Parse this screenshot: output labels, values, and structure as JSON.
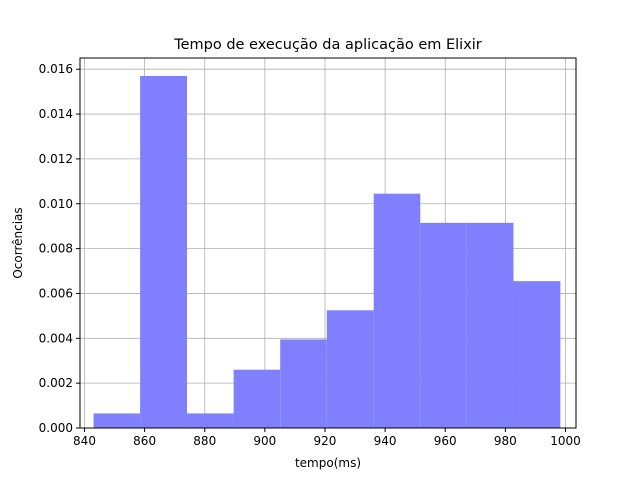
{
  "chart_data": {
    "type": "bar",
    "subtype": "histogram",
    "title": "Tempo de execução da aplicação em Elixir",
    "xlabel": "tempo(ms)",
    "ylabel": "Ocorrências",
    "xlim": [
      838.5,
      1003.5
    ],
    "ylim": [
      0,
      0.0165
    ],
    "grid": true,
    "bar_color": "#8080ff",
    "x_ticks": [
      "840",
      "860",
      "880",
      "900",
      "920",
      "940",
      "960",
      "980",
      "1000"
    ],
    "x_tick_values": [
      840,
      860,
      880,
      900,
      920,
      940,
      960,
      980,
      1000
    ],
    "y_ticks": [
      "0.000",
      "0.002",
      "0.004",
      "0.006",
      "0.008",
      "0.010",
      "0.012",
      "0.014",
      "0.016"
    ],
    "y_tick_values": [
      0,
      0.002,
      0.004,
      0.006,
      0.008,
      0.01,
      0.012,
      0.014,
      0.016
    ],
    "bins": [
      {
        "start": 843.0,
        "end": 858.5,
        "value": 0.00065
      },
      {
        "start": 858.5,
        "end": 874.1,
        "value": 0.0157
      },
      {
        "start": 874.1,
        "end": 889.6,
        "value": 0.00065
      },
      {
        "start": 889.6,
        "end": 905.1,
        "value": 0.0026
      },
      {
        "start": 905.1,
        "end": 920.6,
        "value": 0.00395
      },
      {
        "start": 920.6,
        "end": 936.2,
        "value": 0.00525
      },
      {
        "start": 936.2,
        "end": 951.7,
        "value": 0.01045
      },
      {
        "start": 951.7,
        "end": 967.2,
        "value": 0.00915
      },
      {
        "start": 967.2,
        "end": 982.7,
        "value": 0.00915
      },
      {
        "start": 982.7,
        "end": 998.3,
        "value": 0.00655
      }
    ]
  }
}
